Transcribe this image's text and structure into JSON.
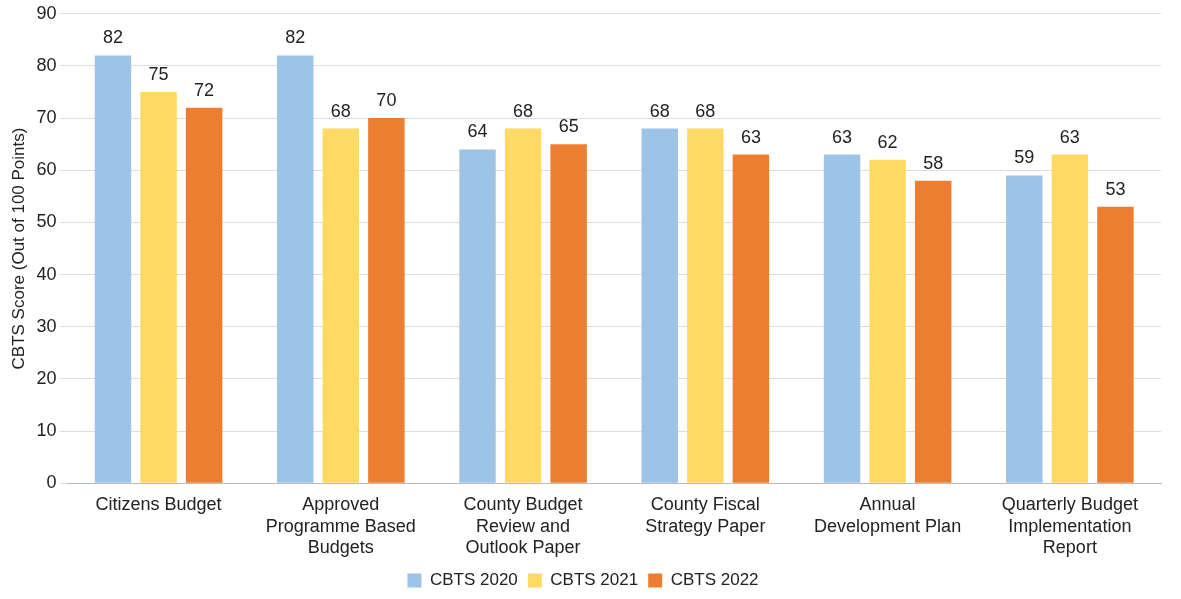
{
  "chart_data": {
    "type": "bar",
    "ylabel": "CBTS Score (Out of 100 Points)",
    "categories": [
      "Citizens Budget",
      "Approved Programme Based Budgets",
      "County Budget Review and Outlook Paper",
      "County Fiscal Strategy Paper",
      "Annual Development Plan",
      "Quarterly Budget Implementation Report"
    ],
    "series": [
      {
        "name": "CBTS 2020",
        "color": "#9dc3e6",
        "values": [
          82,
          82,
          64,
          68,
          63,
          59
        ]
      },
      {
        "name": "CBTS 2021",
        "color": "#ffd966",
        "values": [
          75,
          68,
          68,
          68,
          62,
          63
        ]
      },
      {
        "name": "CBTS 2022",
        "color": "#ed7d31",
        "values": [
          72,
          70,
          65,
          63,
          58,
          53
        ]
      }
    ],
    "ylim": [
      0,
      90
    ],
    "yticks": [
      0,
      10,
      20,
      30,
      40,
      50,
      60,
      70,
      80,
      90
    ],
    "grid": "y",
    "legend": "bottom",
    "data_labels": true
  }
}
